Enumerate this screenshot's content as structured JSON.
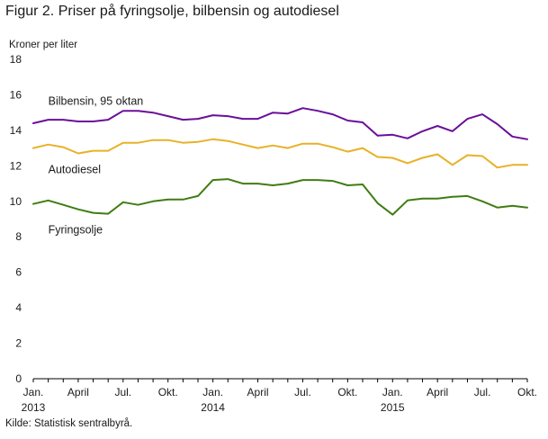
{
  "figure": {
    "title": "Figur 2. Priser på fyringsolje, bilbensin og autodiesel",
    "source": "Kilde: Statistisk sentralbyrå."
  },
  "chart_data": {
    "type": "line",
    "ylabel": "Kroner per liter",
    "ylim": [
      0,
      18
    ],
    "yticks": [
      0,
      2,
      4,
      6,
      8,
      10,
      12,
      14,
      16,
      18
    ],
    "grid": false,
    "x": [
      "2013-01",
      "2013-02",
      "2013-03",
      "2013-04",
      "2013-05",
      "2013-06",
      "2013-07",
      "2013-08",
      "2013-09",
      "2013-10",
      "2013-11",
      "2013-12",
      "2014-01",
      "2014-02",
      "2014-03",
      "2014-04",
      "2014-05",
      "2014-06",
      "2014-07",
      "2014-08",
      "2014-09",
      "2014-10",
      "2014-11",
      "2014-12",
      "2015-01",
      "2015-02",
      "2015-03",
      "2015-04",
      "2015-05",
      "2015-06",
      "2015-07",
      "2015-08",
      "2015-09",
      "2015-10"
    ],
    "xtick_labels": [
      {
        "index": 0,
        "label": "Jan.",
        "sublabel": "2013"
      },
      {
        "index": 3,
        "label": "April",
        "sublabel": ""
      },
      {
        "index": 6,
        "label": "Jul.",
        "sublabel": ""
      },
      {
        "index": 9,
        "label": "Okt.",
        "sublabel": ""
      },
      {
        "index": 12,
        "label": "Jan.",
        "sublabel": "2014"
      },
      {
        "index": 15,
        "label": "April",
        "sublabel": ""
      },
      {
        "index": 18,
        "label": "Jul.",
        "sublabel": ""
      },
      {
        "index": 21,
        "label": "Okt.",
        "sublabel": ""
      },
      {
        "index": 24,
        "label": "Jan.",
        "sublabel": "2015"
      },
      {
        "index": 27,
        "label": "April",
        "sublabel": ""
      },
      {
        "index": 30,
        "label": "Jul.",
        "sublabel": ""
      },
      {
        "index": 33,
        "label": "Okt.",
        "sublabel": ""
      }
    ],
    "series": [
      {
        "name": "Bilbensin,  95 oktan",
        "color": "#6a0f9a",
        "label_anchor": {
          "index": 1,
          "value": 15.65
        },
        "values": [
          14.4,
          14.6,
          14.6,
          14.5,
          14.5,
          14.6,
          15.1,
          15.1,
          15.0,
          14.8,
          14.6,
          14.65,
          14.85,
          14.8,
          14.65,
          14.65,
          15.0,
          14.95,
          15.25,
          15.1,
          14.9,
          14.55,
          14.45,
          13.7,
          13.75,
          13.55,
          13.95,
          14.25,
          13.95,
          14.65,
          14.9,
          14.35,
          13.65,
          13.5
        ]
      },
      {
        "name": "Autodiesel",
        "color": "#e8b128",
        "label_anchor": {
          "index": 1,
          "value": 11.8
        },
        "values": [
          13.0,
          13.2,
          13.05,
          12.7,
          12.85,
          12.85,
          13.3,
          13.3,
          13.45,
          13.45,
          13.3,
          13.35,
          13.5,
          13.4,
          13.2,
          13.0,
          13.15,
          13.0,
          13.25,
          13.25,
          13.05,
          12.8,
          13.0,
          12.5,
          12.45,
          12.15,
          12.45,
          12.65,
          12.05,
          12.6,
          12.55,
          11.9,
          12.05,
          12.05
        ]
      },
      {
        "name": "Fyringsolje",
        "color": "#3f7d12",
        "label_anchor": {
          "index": 1,
          "value": 8.4
        },
        "values": [
          9.85,
          10.05,
          9.8,
          9.55,
          9.35,
          9.3,
          9.95,
          9.8,
          10.0,
          10.1,
          10.1,
          10.3,
          11.2,
          11.25,
          11.0,
          11.0,
          10.9,
          11.0,
          11.2,
          11.2,
          11.15,
          10.9,
          10.95,
          9.9,
          9.25,
          10.05,
          10.15,
          10.15,
          10.25,
          10.3,
          10.0,
          9.65,
          9.75,
          9.65
        ]
      }
    ]
  }
}
